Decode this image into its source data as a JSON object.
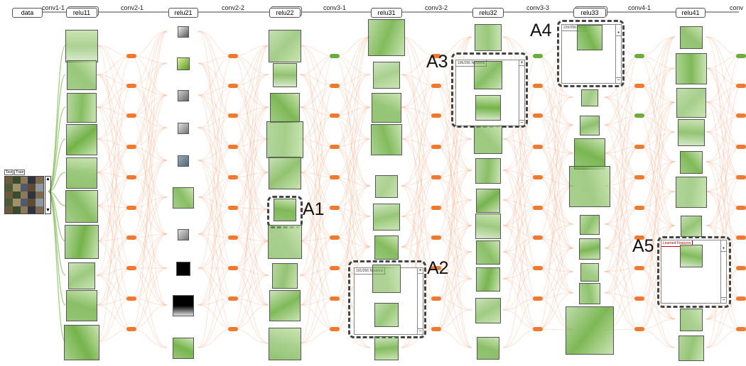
{
  "header": {
    "input_label": "data",
    "layers": [
      "relu11",
      "relu21",
      "relu22",
      "relu31",
      "relu32",
      "relu33",
      "relu41"
    ],
    "convs": [
      "conv1-1",
      "conv2-1",
      "conv2-2",
      "conv3-1",
      "conv3-2",
      "conv3-3",
      "conv4-1",
      "conv"
    ]
  },
  "data_panel": {
    "tabs": [
      "Test",
      "Train"
    ],
    "scroll_up": "▲",
    "scroll_down": "▼"
  },
  "annotations": {
    "a1": "A1",
    "a2": "A2",
    "a3": "A3",
    "a4": "A4",
    "a5": "A5"
  },
  "panels": {
    "a2": {
      "title": "191/256 Neurons"
    },
    "a3": {
      "title": "195/256 Neurons"
    },
    "a4": {
      "title": "220/256 Neurons"
    },
    "a5": {
      "title": "Learned Features"
    }
  },
  "panel_controls": {
    "plus": "+",
    "minus": "−"
  },
  "colors": {
    "green": "#6aad3d",
    "orange": "#ee7a2f",
    "edge": "#f6b08a",
    "edge_green": "#7dbb4e"
  },
  "icons": [
    "scroll-up-icon",
    "scroll-down-icon",
    "plus-icon",
    "minus-icon"
  ]
}
